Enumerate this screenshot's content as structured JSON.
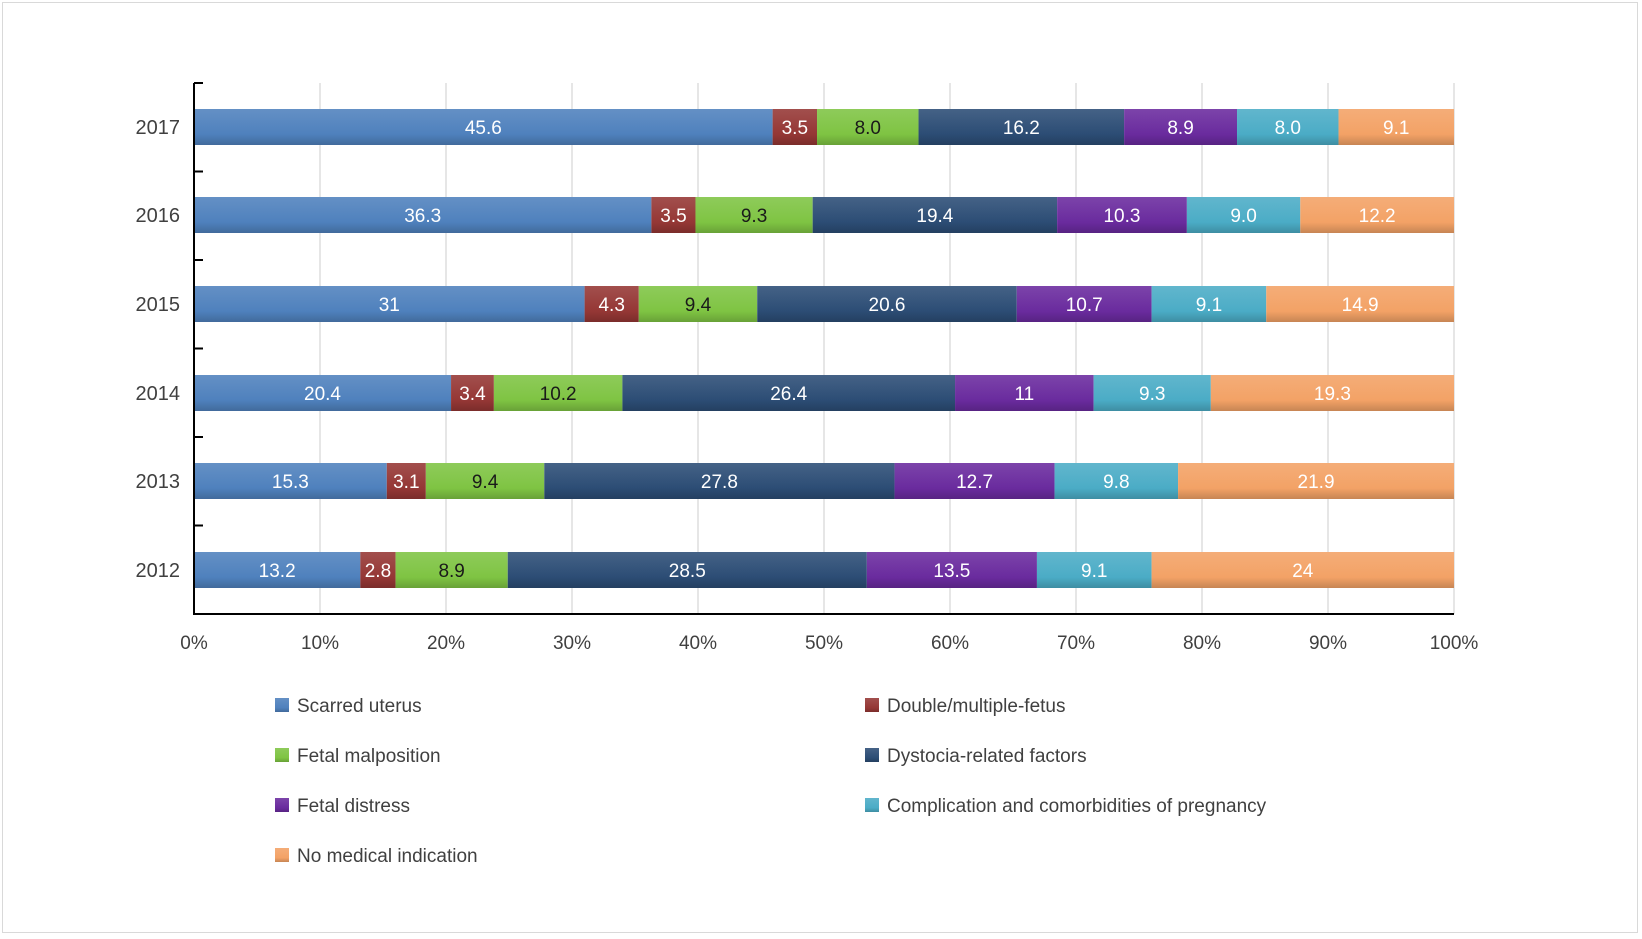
{
  "chart_data": {
    "type": "bar",
    "orientation": "horizontal",
    "stacked": "percent",
    "title": "",
    "xlabel": "",
    "ylabel": "",
    "xlim": [
      0,
      100
    ],
    "x_ticks": [
      "0%",
      "10%",
      "20%",
      "30%",
      "40%",
      "50%",
      "60%",
      "70%",
      "80%",
      "90%",
      "100%"
    ],
    "grid": "vertical",
    "legend_position": "bottom",
    "categories": [
      "2017",
      "2016",
      "2015",
      "2014",
      "2013",
      "2012"
    ],
    "series": [
      {
        "name": "Scarred uterus",
        "color": "#4f81bd",
        "values": [
          45.6,
          36.3,
          31,
          20.4,
          15.3,
          13.2
        ],
        "labels": [
          "45.6",
          "36.3",
          "31",
          "20.4",
          "15.3",
          "13.2"
        ]
      },
      {
        "name": "Double/multiple-fetus",
        "color": "#953735",
        "values": [
          3.5,
          3.5,
          4.3,
          3.4,
          3.1,
          2.8
        ],
        "labels": [
          "3.5",
          "3.5",
          "4.3",
          "3.4",
          "3.1",
          "2.8"
        ]
      },
      {
        "name": "Fetal malposition",
        "color": "#7fc443",
        "values": [
          8.0,
          9.3,
          9.4,
          10.2,
          9.4,
          8.9
        ],
        "labels": [
          "8.0",
          "9.3",
          "9.4",
          "10.2",
          "9.4",
          "8.9"
        ]
      },
      {
        "name": "Dystocia-related factors",
        "color": "#2c4d75",
        "values": [
          16.2,
          19.4,
          20.6,
          26.4,
          27.8,
          28.5
        ],
        "labels": [
          "16.2",
          "19.4",
          "20.6",
          "26.4",
          "27.8",
          "28.5"
        ]
      },
      {
        "name": "Fetal distress",
        "color": "#6a2b9e",
        "values": [
          8.9,
          10.3,
          10.7,
          11,
          12.7,
          13.5
        ],
        "labels": [
          "8.9",
          "10.3",
          "10.7",
          "11",
          "12.7",
          "13.5"
        ]
      },
      {
        "name": "Complication and comorbidities of pregnancy",
        "color": "#4bacc6",
        "values": [
          8.0,
          9.0,
          9.1,
          9.3,
          9.8,
          9.1
        ],
        "labels": [
          "8.0",
          "9.0",
          "9.1",
          "9.3",
          "9.8",
          "9.1"
        ]
      },
      {
        "name": "No medical indication",
        "color": "#f3a266",
        "values": [
          9.1,
          12.2,
          14.9,
          19.3,
          21.9,
          24
        ],
        "labels": [
          "9.1",
          "12.2",
          "14.9",
          "19.3",
          "21.9",
          "24"
        ]
      }
    ]
  }
}
